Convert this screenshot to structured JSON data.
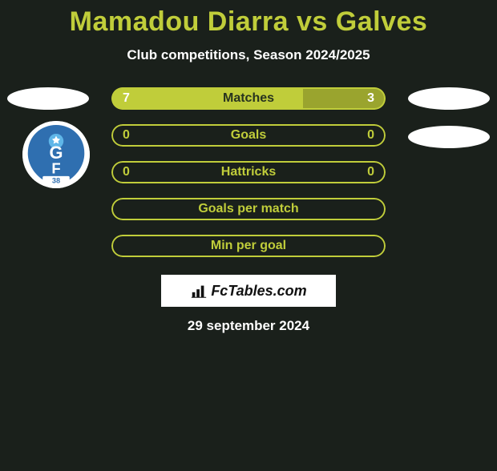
{
  "title": "Mamadou Diarra vs Galves",
  "subtitle": "Club competitions, Season 2024/2025",
  "colors": {
    "accent": "#c0cd3a",
    "accent_dark": "#9aa42e",
    "background": "#1a201b",
    "white": "#ffffff",
    "text_dark": "#27331f"
  },
  "bars": [
    {
      "label": "Matches",
      "left_val": "7",
      "right_val": "3",
      "left_pct": 70,
      "label_color": "#27331f",
      "left_fill": "#c0cd3a",
      "right_fill": "#9aa42e",
      "border_color": "#c0cd3a",
      "show_vals": true
    },
    {
      "label": "Goals",
      "left_val": "0",
      "right_val": "0",
      "left_pct": 50,
      "label_color": "#c0cd3a",
      "left_fill": "transparent",
      "right_fill": "transparent",
      "border_color": "#c0cd3a",
      "show_vals": true
    },
    {
      "label": "Hattricks",
      "left_val": "0",
      "right_val": "0",
      "left_pct": 50,
      "label_color": "#c0cd3a",
      "left_fill": "transparent",
      "right_fill": "transparent",
      "border_color": "#c0cd3a",
      "show_vals": true
    },
    {
      "label": "Goals per match",
      "left_val": "",
      "right_val": "",
      "left_pct": 50,
      "label_color": "#c0cd3a",
      "left_fill": "transparent",
      "right_fill": "transparent",
      "border_color": "#c0cd3a",
      "show_vals": false
    },
    {
      "label": "Min per goal",
      "left_val": "",
      "right_val": "",
      "left_pct": 50,
      "label_color": "#c0cd3a",
      "left_fill": "transparent",
      "right_fill": "transparent",
      "border_color": "#c0cd3a",
      "show_vals": false
    }
  ],
  "footer": {
    "brand": "FcTables.com",
    "date": "29 september 2024"
  },
  "club_badge": {
    "primary": "#2f6fb0",
    "accent": "#4aa3df",
    "number": "38",
    "letters_top": "G",
    "letters_bottom": "F"
  }
}
